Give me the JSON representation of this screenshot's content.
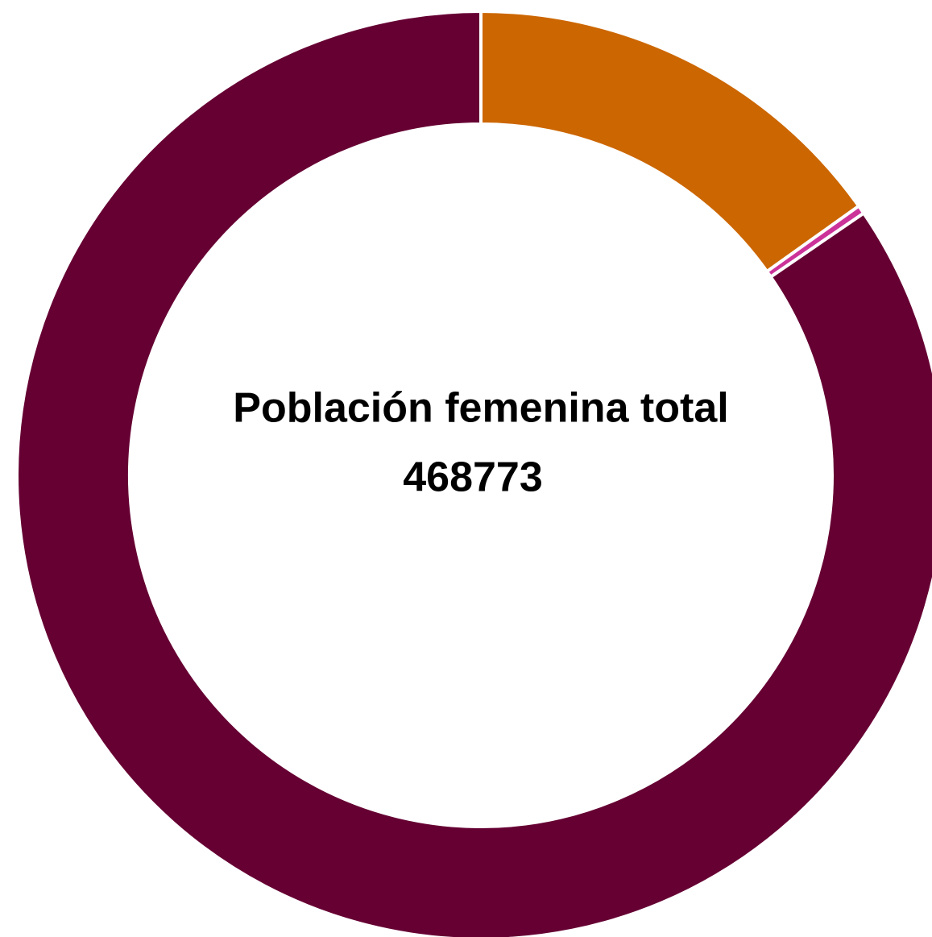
{
  "chart_data": {
    "type": "donut",
    "center_label": "Población femenina total",
    "center_value": "468773",
    "values": [
      71000,
      1400,
      396373
    ],
    "colors": [
      "#cc6600",
      "#cc3399",
      "#660033"
    ]
  }
}
